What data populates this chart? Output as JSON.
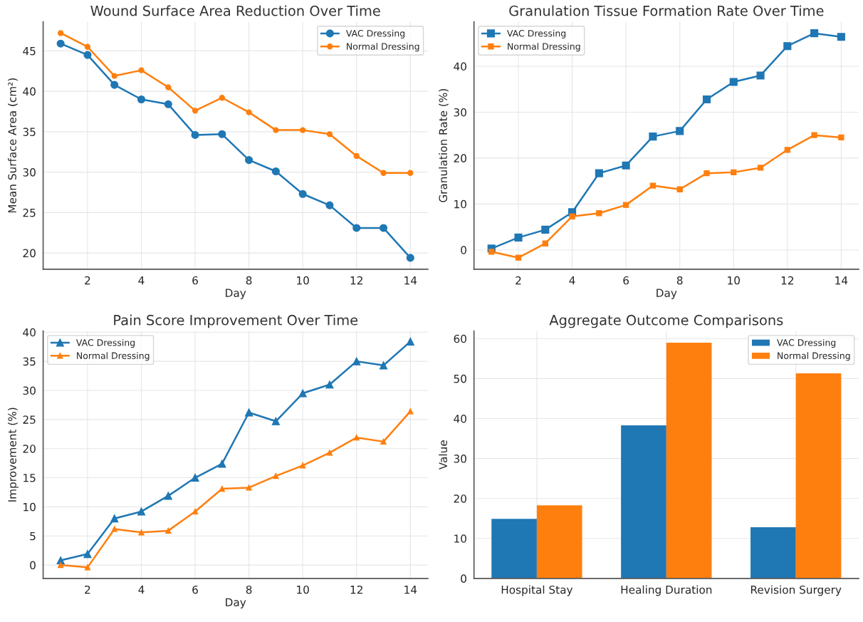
{
  "chart_data": [
    {
      "type": "line",
      "title": "Wound Surface Area Reduction Over Time",
      "xlabel": "Day",
      "ylabel": "Mean Surface Area (cm²)",
      "x": [
        1,
        2,
        3,
        4,
        5,
        6,
        7,
        8,
        9,
        10,
        11,
        12,
        13,
        14
      ],
      "xlim": [
        0.35,
        14.65
      ],
      "xticks": [
        2,
        4,
        6,
        8,
        10,
        12,
        14
      ],
      "ylim": [
        18.0,
        48.6
      ],
      "yticks": [
        20,
        25,
        30,
        35,
        40,
        45
      ],
      "marker": "circle",
      "grid": true,
      "legend": "top right",
      "series": [
        {
          "name": "VAC Dressing",
          "color": "#1f77b4",
          "values": [
            45.9,
            44.5,
            40.8,
            39.0,
            38.4,
            34.6,
            34.7,
            31.5,
            30.1,
            27.3,
            25.9,
            23.1,
            23.1,
            19.4
          ]
        },
        {
          "name": "Normal Dressing",
          "color": "#ff7f0e",
          "values": [
            47.2,
            45.5,
            41.9,
            42.6,
            40.5,
            37.6,
            39.2,
            37.4,
            35.2,
            35.2,
            34.7,
            32.0,
            29.9,
            29.9
          ]
        }
      ]
    },
    {
      "type": "line",
      "title": "Granulation Tissue Formation Rate Over Time",
      "xlabel": "Day",
      "ylabel": "Granulation Rate (%)",
      "x": [
        1,
        2,
        3,
        4,
        5,
        6,
        7,
        8,
        9,
        10,
        11,
        12,
        13,
        14
      ],
      "xlim": [
        0.35,
        14.65
      ],
      "xticks": [
        2,
        4,
        6,
        8,
        10,
        12,
        14
      ],
      "ylim": [
        -4.2,
        49.7
      ],
      "yticks": [
        0,
        10,
        20,
        30,
        40
      ],
      "marker": "square",
      "grid": true,
      "legend": "top left",
      "series": [
        {
          "name": "VAC Dressing",
          "color": "#1f77b4",
          "values": [
            0.3,
            2.7,
            4.4,
            8.2,
            16.7,
            18.4,
            24.7,
            25.9,
            32.8,
            36.6,
            38.0,
            44.4,
            47.2,
            46.4
          ]
        },
        {
          "name": "Normal Dressing",
          "color": "#ff7f0e",
          "values": [
            -0.4,
            -1.7,
            1.4,
            7.3,
            8.0,
            9.8,
            14.0,
            13.2,
            16.7,
            16.9,
            17.9,
            21.8,
            25.0,
            24.5
          ]
        }
      ]
    },
    {
      "type": "line",
      "title": "Pain Score Improvement Over Time",
      "xlabel": "Day",
      "ylabel": "Improvement (%)",
      "x": [
        1,
        2,
        3,
        4,
        5,
        6,
        7,
        8,
        9,
        10,
        11,
        12,
        13,
        14
      ],
      "xlim": [
        0.35,
        14.65
      ],
      "xticks": [
        2,
        4,
        6,
        8,
        10,
        12,
        14
      ],
      "ylim": [
        -2.3,
        40.2
      ],
      "yticks": [
        0,
        5,
        10,
        15,
        20,
        25,
        30,
        35,
        40
      ],
      "marker": "triangle",
      "grid": true,
      "legend": "top left",
      "series": [
        {
          "name": "VAC Dressing",
          "color": "#1f77b4",
          "values": [
            0.8,
            1.9,
            8.0,
            9.2,
            11.9,
            15.0,
            17.4,
            26.2,
            24.7,
            29.5,
            31.0,
            35.0,
            34.3,
            38.4
          ]
        },
        {
          "name": "Normal Dressing",
          "color": "#ff7f0e",
          "values": [
            0.0,
            -0.4,
            6.2,
            5.6,
            5.9,
            9.2,
            13.1,
            13.3,
            15.3,
            17.1,
            19.3,
            21.9,
            21.2,
            26.4
          ]
        }
      ]
    },
    {
      "type": "bar",
      "title": "Aggregate Outcome Comparisons",
      "ylabel": "Value",
      "categories": [
        "Hospital Stay",
        "Healing Duration",
        "Revision Surgery"
      ],
      "ylim": [
        0,
        61.9
      ],
      "yticks": [
        0,
        10,
        20,
        30,
        40,
        50,
        60
      ],
      "grid": true,
      "legend": "top right",
      "series": [
        {
          "name": "VAC Dressing",
          "color": "#1f77b4",
          "values": [
            14.9,
            38.3,
            12.8
          ]
        },
        {
          "name": "Normal Dressing",
          "color": "#ff7f0e",
          "values": [
            18.3,
            59.0,
            51.3
          ]
        }
      ]
    }
  ]
}
